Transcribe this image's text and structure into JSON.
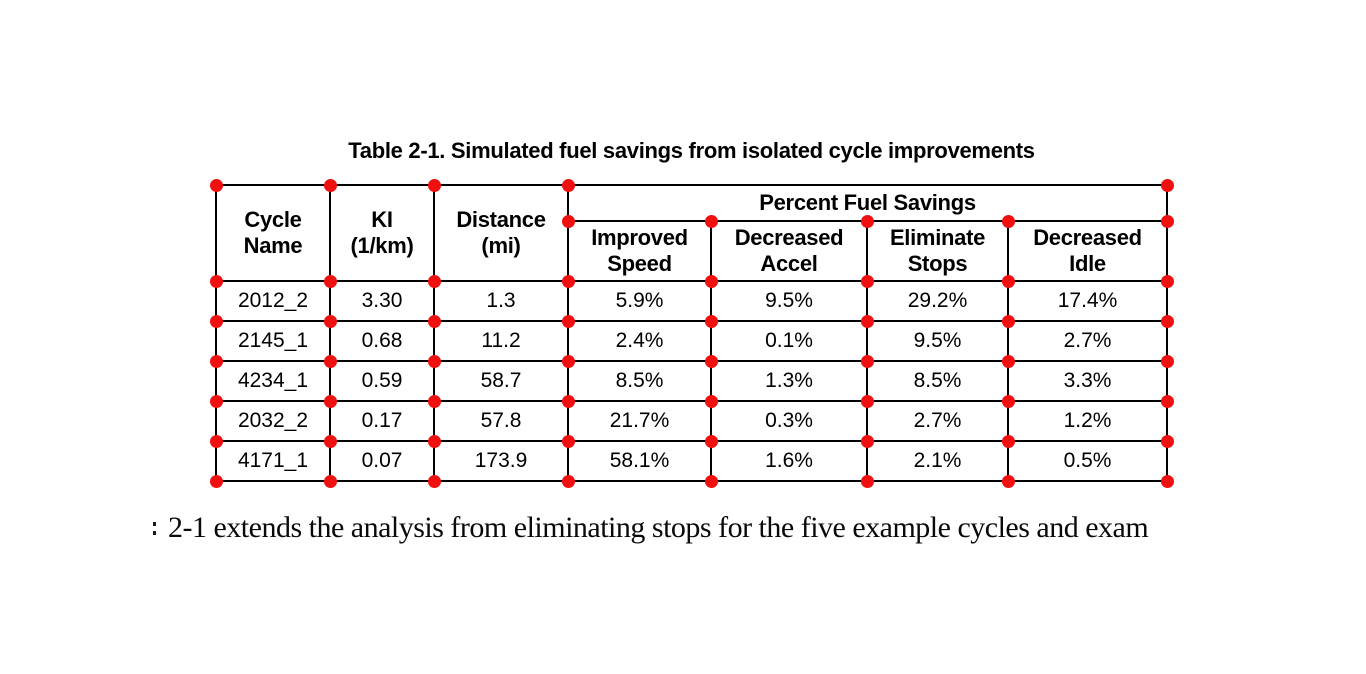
{
  "title": "Table 2-1. Simulated fuel savings from isolated cycle improvements",
  "table": {
    "headers": {
      "cycle_name": {
        "line1": "Cycle",
        "line2": "Name"
      },
      "ki": {
        "line1": "KI",
        "line2": "(1/km)"
      },
      "distance": {
        "line1": "Distance",
        "line2": "(mi)"
      },
      "group": "Percent Fuel Savings",
      "sub": [
        {
          "line1": "Improved",
          "line2": "Speed"
        },
        {
          "line1": "Decreased",
          "line2": "Accel"
        },
        {
          "line1": "Eliminate",
          "line2": "Stops"
        },
        {
          "line1": "Decreased",
          "line2": "Idle"
        }
      ]
    },
    "rows": [
      {
        "cycle": "2012_2",
        "ki": "3.30",
        "distance": "1.3",
        "improved_speed": "5.9%",
        "decreased_accel": "9.5%",
        "eliminate_stops": "29.2%",
        "decreased_idle": "17.4%"
      },
      {
        "cycle": "2145_1",
        "ki": "0.68",
        "distance": "11.2",
        "improved_speed": "2.4%",
        "decreased_accel": "0.1%",
        "eliminate_stops": "9.5%",
        "decreased_idle": "2.7%"
      },
      {
        "cycle": "4234_1",
        "ki": "0.59",
        "distance": "58.7",
        "improved_speed": "8.5%",
        "decreased_accel": "1.3%",
        "eliminate_stops": "8.5%",
        "decreased_idle": "3.3%"
      },
      {
        "cycle": "2032_2",
        "ki": "0.17",
        "distance": "57.8",
        "improved_speed": "21.7%",
        "decreased_accel": "0.3%",
        "eliminate_stops": "2.7%",
        "decreased_idle": "1.2%"
      },
      {
        "cycle": "4171_1",
        "ki": "0.07",
        "distance": "173.9",
        "improved_speed": "58.1%",
        "decreased_accel": "1.6%",
        "eliminate_stops": "2.1%",
        "decreased_idle": "0.5%"
      }
    ]
  },
  "markers": {
    "icon": "cell-corner-marker",
    "color": "#f01010"
  },
  "body_text": {
    "text": "2-1 extends the analysis from eliminating stops for the five example cycles and exam"
  }
}
